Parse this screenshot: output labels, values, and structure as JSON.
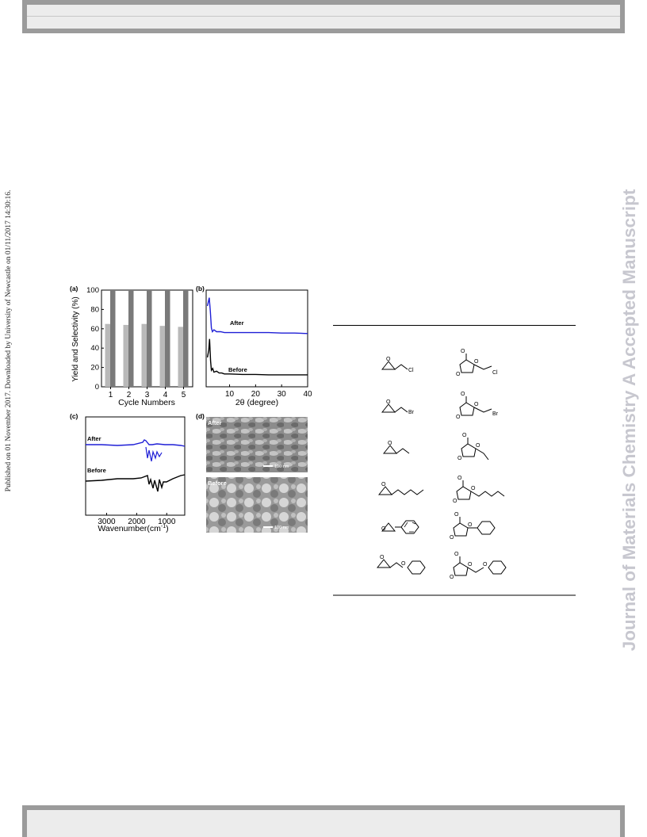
{
  "side_note": "Published on 01 November 2017. Downloaded by University of Newcastle on 01/11/2017 14:30:16.",
  "watermark": "Journal of Materials Chemistry A Accepted Manuscript",
  "panel_a": {
    "label": "(a)",
    "chart_data": {
      "type": "bar",
      "categories": [
        "1",
        "2",
        "3",
        "4",
        "5"
      ],
      "series": [
        {
          "values": [
            65,
            64,
            65,
            63,
            62
          ],
          "color": "#b9b9b9"
        },
        {
          "values": [
            100,
            100,
            100,
            100,
            100
          ],
          "color": "#7a7a7a"
        }
      ],
      "xlabel": "Cycle Numbers",
      "ylabel": "Yield and Selectivity (%)",
      "ylim": [
        0,
        100
      ],
      "yticks": [
        "0",
        "20",
        "40",
        "60",
        "80",
        "100"
      ]
    }
  },
  "panel_b": {
    "label": "(b)",
    "chart_data": {
      "type": "line",
      "xlabel": "2θ (degree)",
      "xticks": [
        "10",
        "20",
        "30",
        "40"
      ],
      "xlim": [
        1,
        40
      ],
      "series": [
        {
          "name": "After",
          "color": "#1f1fd6",
          "x": [
            1.5,
            2.2,
            2.6,
            3.0,
            3.4,
            4.0,
            5.0,
            6.5,
            8,
            10,
            15,
            20,
            25,
            30,
            35,
            40
          ],
          "y": [
            0.88,
            0.97,
            0.82,
            0.64,
            0.6,
            0.62,
            0.6,
            0.6,
            0.59,
            0.59,
            0.59,
            0.59,
            0.59,
            0.585,
            0.585,
            0.58
          ]
        },
        {
          "name": "Before",
          "color": "#000000",
          "x": [
            1.5,
            2.0,
            2.3,
            2.7,
            3.0,
            3.5,
            4.0,
            5.0,
            6.0,
            7.0,
            8.0,
            10,
            15,
            20,
            25,
            30,
            35,
            40
          ],
          "y": [
            0.32,
            0.4,
            0.52,
            0.28,
            0.18,
            0.2,
            0.16,
            0.17,
            0.15,
            0.15,
            0.14,
            0.14,
            0.135,
            0.135,
            0.13,
            0.13,
            0.13,
            0.13
          ]
        }
      ]
    }
  },
  "panel_c": {
    "label": "(c)",
    "chart_data": {
      "type": "line",
      "xlabel": "Wavenumber(cm",
      "xlabel_sup": "-1",
      "xlabel_end": ")",
      "xticks": [
        "3000",
        "2000",
        "1000"
      ],
      "xlim": [
        3700,
        400
      ],
      "series": [
        {
          "name": "After",
          "color": "#1f1fd6"
        },
        {
          "name": "Before",
          "color": "#000000"
        }
      ]
    }
  },
  "panel_d": {
    "label": "(d)",
    "top": {
      "label": "After",
      "scale": "100 nm"
    },
    "bottom": {
      "label": "Before",
      "scale": "100 nm"
    }
  },
  "table": {
    "rows": [
      {
        "epoxide_sub": "Cl",
        "product_sub": "Cl"
      },
      {
        "epoxide_sub": "Br",
        "product_sub": "Br"
      },
      {
        "epoxide_sub": "",
        "product_sub": ""
      },
      {
        "epoxide_sub": "",
        "product_sub": ""
      },
      {
        "epoxide_sub": "",
        "product_sub": ""
      },
      {
        "epoxide_sub": "",
        "product_sub": ""
      }
    ],
    "atom_O": "O"
  }
}
